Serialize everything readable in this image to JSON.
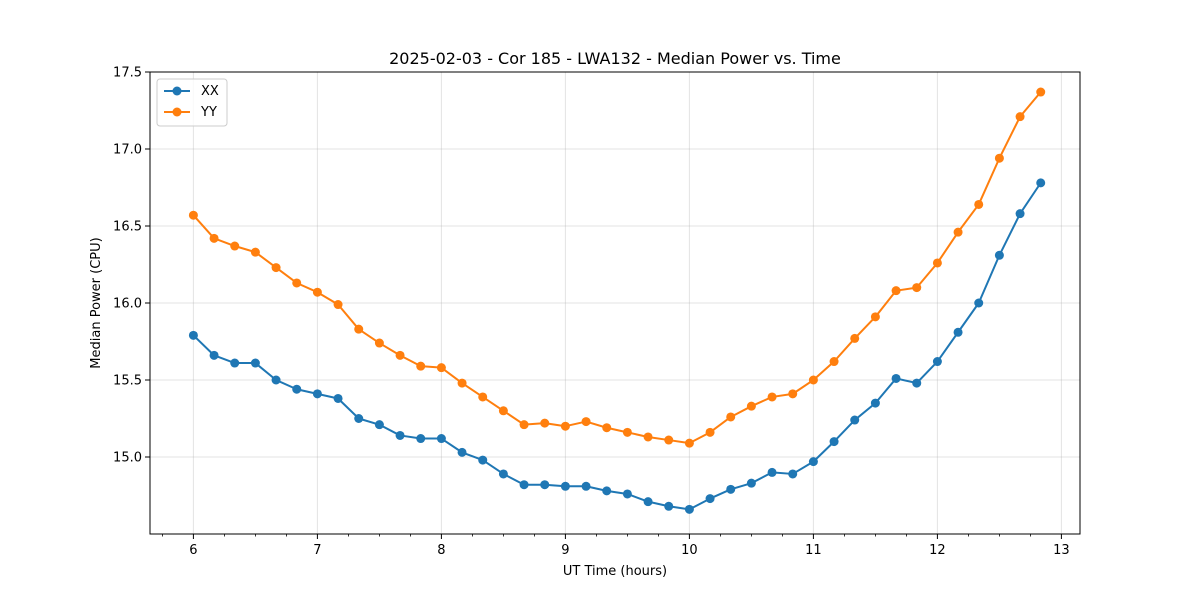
{
  "chart_data": {
    "type": "line",
    "title": "2025-02-03 - Cor 185 - LWA132 - Median Power vs. Time",
    "xlabel": "UT Time (hours)",
    "ylabel": "Median Power (CPU)",
    "xlim": [
      5.65,
      13.15
    ],
    "ylim": [
      14.5,
      17.5
    ],
    "xticks": [
      6,
      7,
      8,
      9,
      10,
      11,
      12,
      13
    ],
    "yticks": [
      15.0,
      15.5,
      16.0,
      16.5,
      17.0,
      17.5
    ],
    "ytick_labels": [
      "15.0",
      "15.5",
      "16.0",
      "16.5",
      "17.0",
      "17.5"
    ],
    "grid": true,
    "legend": "top-left",
    "x": [
      6.0,
      6.1667,
      6.3333,
      6.5,
      6.6667,
      6.8333,
      7.0,
      7.1667,
      7.3333,
      7.5,
      7.6667,
      7.8333,
      8.0,
      8.1667,
      8.3333,
      8.5,
      8.6667,
      8.8333,
      9.0,
      9.1667,
      9.3333,
      9.5,
      9.6667,
      9.8333,
      10.0,
      10.1667,
      10.3333,
      10.5,
      10.6667,
      10.8333,
      11.0,
      11.1667,
      11.3333,
      11.5,
      11.6667,
      11.8333,
      12.0,
      12.1667,
      12.3333,
      12.5,
      12.6667,
      12.8333
    ],
    "series": [
      {
        "name": "XX",
        "color": "#1f77b4",
        "values": [
          15.79,
          15.66,
          15.61,
          15.61,
          15.5,
          15.44,
          15.41,
          15.38,
          15.25,
          15.21,
          15.14,
          15.12,
          15.12,
          15.03,
          14.98,
          14.89,
          14.82,
          14.82,
          14.81,
          14.81,
          14.78,
          14.76,
          14.71,
          14.68,
          14.66,
          14.73,
          14.79,
          14.83,
          14.9,
          14.89,
          14.97,
          15.1,
          15.24,
          15.35,
          15.51,
          15.48,
          15.62,
          15.81,
          16.0,
          16.31,
          16.58,
          16.78
        ]
      },
      {
        "name": "YY",
        "color": "#ff7f0e",
        "values": [
          16.57,
          16.42,
          16.37,
          16.33,
          16.23,
          16.13,
          16.07,
          15.99,
          15.83,
          15.74,
          15.66,
          15.59,
          15.58,
          15.48,
          15.39,
          15.3,
          15.21,
          15.22,
          15.2,
          15.23,
          15.19,
          15.16,
          15.13,
          15.11,
          15.09,
          15.16,
          15.26,
          15.33,
          15.39,
          15.41,
          15.5,
          15.62,
          15.77,
          15.91,
          16.08,
          16.1,
          16.26,
          16.46,
          16.64,
          16.94,
          17.21,
          17.37
        ]
      }
    ]
  }
}
